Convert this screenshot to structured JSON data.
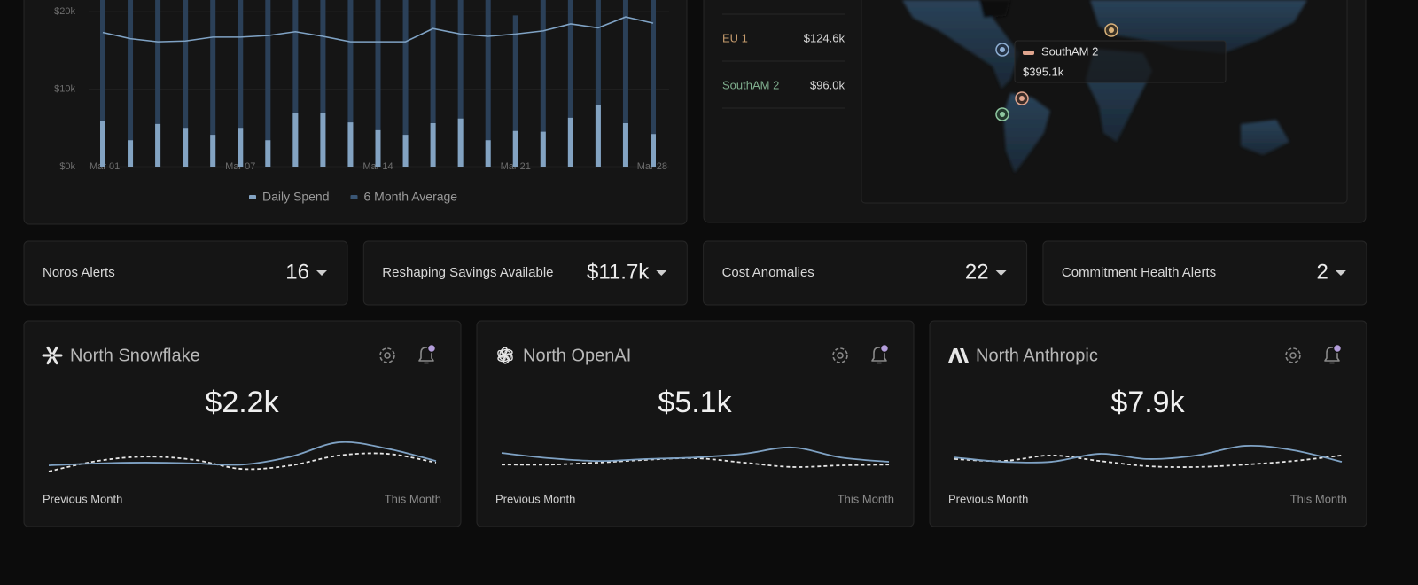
{
  "spend_chart": {
    "type": "bar",
    "categories": [
      "Mar 01",
      null,
      null,
      null,
      null,
      "Mar 07",
      null,
      null,
      null,
      null,
      "Mar 14",
      null,
      null,
      null,
      null,
      "Mar 21",
      null,
      null,
      null,
      null,
      "Mar 28"
    ],
    "series": [
      {
        "name": "Daily Spend",
        "color": "#83a3c2",
        "values": [
          5.9,
          3.4,
          5.5,
          5.0,
          4.1,
          5.0,
          3.4,
          6.9,
          6.9,
          5.7,
          4.7,
          4.1,
          5.6,
          6.2,
          3.4,
          4.6,
          4.5,
          6.3,
          7.9,
          5.6,
          4.2
        ]
      },
      {
        "name": "6 Month Average",
        "color": "#2b4058",
        "values": [
          22,
          22,
          22,
          22,
          22,
          22,
          22,
          22,
          22,
          22,
          22,
          22,
          22,
          22,
          22,
          19.5,
          22,
          22,
          22,
          22,
          22
        ]
      },
      {
        "type": "line",
        "color": "#7fa2c4",
        "values": [
          17.3,
          16.5,
          16.1,
          16.2,
          16.7,
          16.7,
          16.9,
          17.4,
          16.8,
          16.1,
          16.1,
          16.1,
          17.8,
          17.1,
          16.8,
          17.1,
          17.5,
          18.4,
          17.9,
          19.3,
          18.5
        ]
      }
    ],
    "ylim": [
      0,
      21.5
    ],
    "yticks": [
      {
        "value": 0,
        "label": "$0k"
      },
      {
        "value": 10,
        "label": "$10k"
      },
      {
        "value": 20,
        "label": "$20k"
      }
    ],
    "grid": true
  },
  "region_table": {
    "rows": [
      {
        "name": "EU 1",
        "color": "#c49a6c",
        "value": "$124.6k"
      },
      {
        "name": "SouthAM 2",
        "color": "#7fae8e",
        "value": "$96.0k"
      }
    ]
  },
  "map": {
    "tooltip": {
      "name": "SouthAM 2",
      "value": "$395.1k",
      "color": "#e0a58e"
    }
  },
  "alerts": [
    {
      "label": "Noros Alerts",
      "value": "16"
    },
    {
      "label": "Reshaping Savings Available",
      "value": "$11.7k"
    },
    {
      "label": "Cost Anomalies",
      "value": "22"
    },
    {
      "label": "Commitment Health Alerts",
      "value": "2"
    }
  ],
  "cost_cards": [
    {
      "title": "North Snowflake",
      "amount": "$2.2k",
      "start_label": "Previous Month",
      "end_label": "This Month",
      "sparkline": {
        "ylim": [
          0,
          10
        ],
        "series": [
          {
            "color": "#7fa2c4",
            "values": [
              2.2,
              2.7,
              2.9,
              2.7,
              2.4,
              4.4,
              8.0,
              6.4,
              3.3
            ]
          },
          {
            "color": "#e6e6e6",
            "dashed": true,
            "values": [
              0.7,
              3.3,
              4.4,
              3.6,
              1.3,
              2.2,
              4.7,
              5.1,
              2.9
            ]
          }
        ]
      }
    },
    {
      "title": "North OpenAI",
      "amount": "$5.1k",
      "start_label": "Previous Month",
      "end_label": "This Month",
      "sparkline": {
        "ylim": [
          0,
          10
        ],
        "series": [
          {
            "color": "#7fa2c4",
            "values": [
              5.3,
              4.0,
              3.3,
              3.8,
              4.2,
              5.1,
              6.7,
              4.2,
              3.1
            ]
          },
          {
            "color": "#e6e6e6",
            "dashed": true,
            "values": [
              2.4,
              2.4,
              2.9,
              3.6,
              4.0,
              2.9,
              1.8,
              2.2,
              2.4
            ]
          }
        ]
      }
    },
    {
      "title": "North Anthropic",
      "amount": "$7.9k",
      "start_label": "Previous Month",
      "end_label": "This Month",
      "sparkline": {
        "ylim": [
          0,
          10
        ],
        "series": [
          {
            "color": "#7fa2c4",
            "values": [
              4.2,
              3.1,
              3.1,
              5.1,
              3.8,
              4.7,
              7.1,
              6.0,
              3.1
            ]
          },
          {
            "color": "#e6e6e6",
            "dashed": true,
            "values": [
              3.8,
              3.3,
              4.7,
              3.3,
              2.0,
              1.8,
              2.4,
              3.3,
              4.7
            ]
          }
        ]
      }
    }
  ]
}
